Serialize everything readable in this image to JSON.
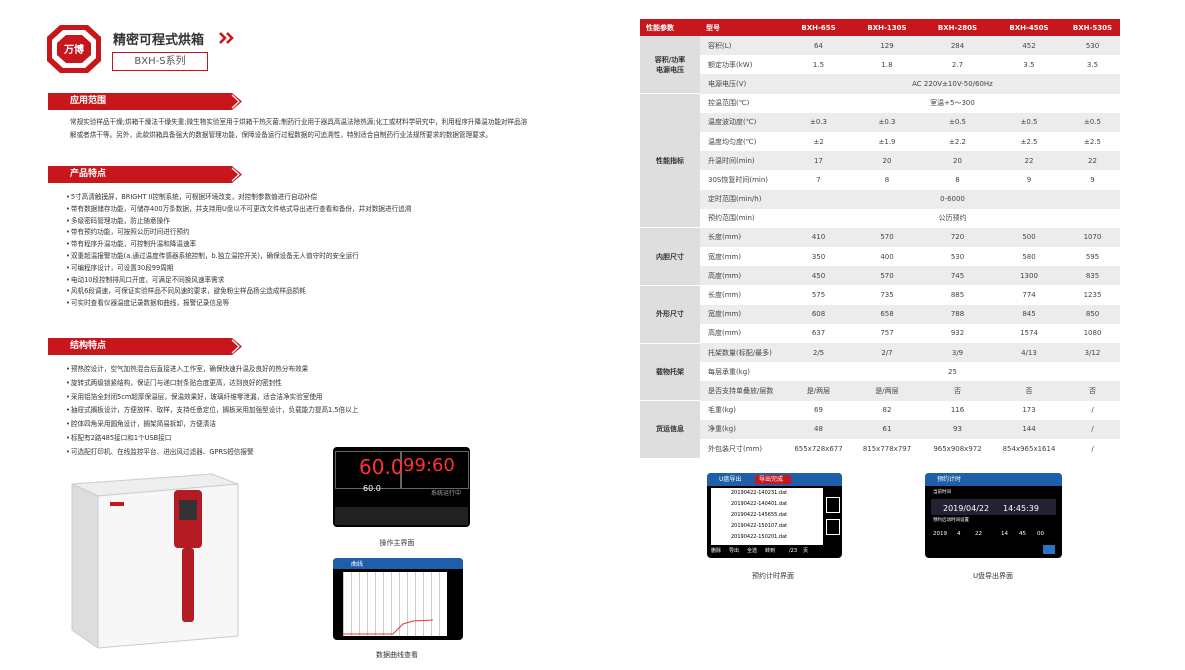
{
  "header": {
    "logo_text": "万博",
    "title": "精密可程式烘箱",
    "series": "BXH-S系列"
  },
  "application": {
    "title": "应用范围",
    "text": "常规实验样品干燥;烘箱干燥法干燥失重;微生物实验室用于烘箱干热灭菌;制药行业用于器具高温法除热源;化工或材料学研究中，利用程序升降温功能对样品溶解或者烘干等。另外，此款烘箱具备强大的数据管理功能，保障设备运行过程数据的可追溯性，特别适合自制药行业法规所要求的数据管理要求。"
  },
  "features": {
    "title": "产品特点",
    "items": [
      "5寸高清触摸屏，BRIGHT II控制系统，可根据环境改变，对控制参数值进行自动补偿",
      "带有数据储存功能，可储存400万条数据，并支持用U盘以不可更改文件格式导出进行查看和备份，并对数据进行追溯",
      "多级密码管理功能，防止随意操作",
      "带有预约功能，可按照公历时间进行预约",
      "带有程序升温功能，可控制升温和降温速率",
      "双重超温报警功能(a.通过温度传感器系统控制，b.独立温控开关)，确保设备无人值守时的安全运行",
      "可编程序设计，可设置30段99周期",
      "电动10段控制排风口开度，可满足不同换风速率需求",
      "风机6段调速，可保证实验样品不同风速的要求，避免粉尘样品扬尘造成样品损耗",
      "可实时查看仪器温度记录数据和曲线，报警记录信息等"
    ]
  },
  "structure": {
    "title": "结构特点",
    "items": [
      "预热腔设计，空气加热混合后直接进入工作室，确保快速升温及良好的热分布效果",
      "旋转式两级锁紧结构，保证门与递口封条贴合度更高，达到良好的密封性",
      "采用铝箔全封闭5cm超厚保温层，保温效果好，玻璃纤维零泄漏，适合洁净实验室使用",
      "抽屉式搁板设计，方便放样、取样，支持任意定位，搁板采用加强型设计，负载能力提高1.5倍以上",
      "腔体四角采用圆角设计，搁架简易拆卸，方便清洁",
      "标配有2路485接口和1个USB接口",
      "可选配打印机、在线监控平台、进出风过滤器、GPRS短信报警"
    ]
  },
  "figures": [
    {
      "caption": "操作主界面",
      "texts": [
        "60.0",
        "99:60",
        "60.0",
        "系统运行中"
      ]
    },
    {
      "caption": "数据曲线查看",
      "texts": [
        "曲线"
      ]
    },
    {
      "caption": "预约计时界面",
      "texts": [
        "U盘导出",
        "导出完成",
        "20190422-140231.dat",
        "20190422-140401.dat",
        "20190422-145655.dat",
        "20190422-150107.dat",
        "20190422-150201.dat",
        "删除",
        "导出",
        "全选",
        "转到",
        "/23",
        "页"
      ]
    },
    {
      "caption": "U盘导出界面",
      "texts": [
        "预约计时",
        "当前时间",
        "2019/04/22",
        "14:45:39",
        "预约启动时间设置",
        "2019",
        "4",
        "22",
        "14",
        "45",
        "00"
      ]
    }
  ],
  "spec_table": {
    "header": [
      "性能参数",
      "型号",
      "BXH-65S",
      "BXH-130S",
      "BXH-280S",
      "BXH-450S",
      "BXH-530S"
    ],
    "groups": [
      {
        "name": "容积/功率\n电源电压",
        "rows": [
          {
            "label": "容积(L)",
            "values": [
              "64",
              "129",
              "284",
              "452",
              "530"
            ]
          },
          {
            "label": "额定功率(kW)",
            "values": [
              "1.5",
              "1.8",
              "2.7",
              "3.5",
              "3.5"
            ]
          },
          {
            "label": "电源电压(V)",
            "value": "AC 220V±10V-50/60Hz"
          }
        ]
      },
      {
        "name": "性能指标",
        "rows": [
          {
            "label": "控温范围(℃)",
            "value": "室温+5～300"
          },
          {
            "label": "温度波动度(℃)",
            "values": [
              "±0.3",
              "±0.3",
              "±0.5",
              "±0.5",
              "±0.5"
            ]
          },
          {
            "label": "温度均匀度(℃)",
            "values": [
              "±2",
              "±1.9",
              "±2.2",
              "±2.5",
              "±2.5"
            ]
          },
          {
            "label": "升温时间(min)",
            "values": [
              "17",
              "20",
              "20",
              "22",
              "22"
            ]
          },
          {
            "label": "30S恢复时间(min)",
            "values": [
              "7",
              "8",
              "8",
              "9",
              "9"
            ]
          },
          {
            "label": "定时范围(min/h)",
            "value": "0-6000"
          },
          {
            "label": "预约范围(min)",
            "value": "公历预约"
          }
        ]
      },
      {
        "name": "内胆尺寸",
        "rows": [
          {
            "label": "长度(mm)",
            "values": [
              "410",
              "570",
              "720",
              "500",
              "1070"
            ]
          },
          {
            "label": "宽度(mm)",
            "values": [
              "350",
              "400",
              "530",
              "580",
              "595"
            ]
          },
          {
            "label": "高度(mm)",
            "values": [
              "450",
              "570",
              "745",
              "1300",
              "835"
            ]
          }
        ]
      },
      {
        "name": "外形尺寸",
        "rows": [
          {
            "label": "长度(mm)",
            "values": [
              "575",
              "735",
              "885",
              "774",
              "1235"
            ]
          },
          {
            "label": "宽度(mm)",
            "values": [
              "608",
              "658",
              "788",
              "845",
              "850"
            ]
          },
          {
            "label": "高度(mm)",
            "values": [
              "637",
              "757",
              "932",
              "1574",
              "1080"
            ]
          }
        ]
      },
      {
        "name": "载物托架",
        "rows": [
          {
            "label": "托架数量(标配/最多)",
            "values": [
              "2/5",
              "2/7",
              "3/9",
              "4/13",
              "3/12"
            ]
          },
          {
            "label": "每层承重(kg)",
            "value": "25"
          },
          {
            "label": "是否支持单叠放/层数",
            "values": [
              "是/两层",
              "是/两层",
              "否",
              "否",
              "否"
            ]
          }
        ]
      },
      {
        "name": "货运信息",
        "rows": [
          {
            "label": "毛重(kg)",
            "values": [
              "69",
              "82",
              "116",
              "173",
              "/"
            ]
          },
          {
            "label": "净重(kg)",
            "values": [
              "48",
              "61",
              "93",
              "144",
              "/"
            ]
          },
          {
            "label": "外包装尺寸(mm)",
            "values": [
              "655x728x677",
              "815x778x797",
              "965x908x972",
              "854x965x1614",
              "/"
            ]
          }
        ]
      }
    ]
  }
}
